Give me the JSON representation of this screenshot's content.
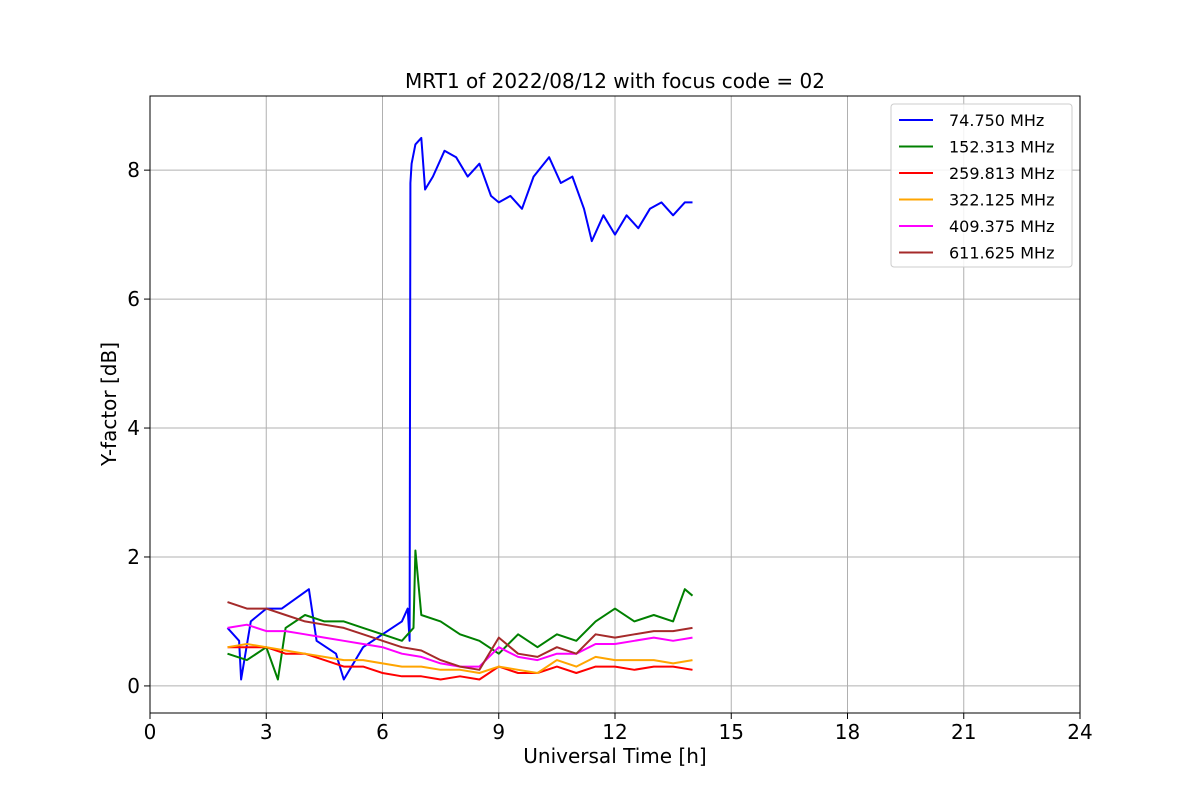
{
  "chart_data": {
    "type": "line",
    "title": "MRT1 of 2022/08/12 with focus code = 02",
    "xlabel": "Universal Time [h]",
    "ylabel": "Y-factor [dB]",
    "xlim": [
      0,
      24
    ],
    "ylim": [
      -0.42,
      9.15
    ],
    "xticks": [
      0,
      3,
      6,
      9,
      12,
      15,
      18,
      21,
      24
    ],
    "yticks": [
      0,
      2,
      4,
      6,
      8
    ],
    "grid": true,
    "legend_position": "top-right",
    "series": [
      {
        "name": " 74.750 MHz",
        "color": "#0000ff",
        "x": [
          2.0,
          2.3,
          2.35,
          2.6,
          3.0,
          3.4,
          4.1,
          4.3,
          4.8,
          5.0,
          5.5,
          6.0,
          6.5,
          6.65,
          6.7,
          6.72,
          6.75,
          6.85,
          7.0,
          7.1,
          7.3,
          7.6,
          7.9,
          8.2,
          8.5,
          8.8,
          9.0,
          9.3,
          9.6,
          9.9,
          10.3,
          10.6,
          10.9,
          11.2,
          11.4,
          11.7,
          12.0,
          12.3,
          12.6,
          12.9,
          13.2,
          13.5,
          13.8,
          14.0
        ],
        "values": [
          0.9,
          0.7,
          0.1,
          1.0,
          1.2,
          1.2,
          1.5,
          0.7,
          0.5,
          0.1,
          0.6,
          0.8,
          1.0,
          1.2,
          0.7,
          7.8,
          8.1,
          8.4,
          8.5,
          7.7,
          7.9,
          8.3,
          8.2,
          7.9,
          8.1,
          7.6,
          7.5,
          7.6,
          7.4,
          7.9,
          8.2,
          7.8,
          7.9,
          7.4,
          6.9,
          7.3,
          7.0,
          7.3,
          7.1,
          7.4,
          7.5,
          7.3,
          7.5,
          7.5
        ]
      },
      {
        "name": "152.313 MHz",
        "color": "#008000",
        "x": [
          2.0,
          2.5,
          3.0,
          3.3,
          3.5,
          4.0,
          4.5,
          5.0,
          5.5,
          6.0,
          6.5,
          6.8,
          6.85,
          7.0,
          7.5,
          8.0,
          8.5,
          9.0,
          9.5,
          10.0,
          10.5,
          11.0,
          11.5,
          12.0,
          12.5,
          13.0,
          13.5,
          13.8,
          14.0
        ],
        "values": [
          0.5,
          0.4,
          0.6,
          0.1,
          0.9,
          1.1,
          1.0,
          1.0,
          0.9,
          0.8,
          0.7,
          0.9,
          2.1,
          1.1,
          1.0,
          0.8,
          0.7,
          0.5,
          0.8,
          0.6,
          0.8,
          0.7,
          1.0,
          1.2,
          1.0,
          1.1,
          1.0,
          1.5,
          1.4
        ]
      },
      {
        "name": "259.813 MHz",
        "color": "#ff0000",
        "x": [
          2.0,
          2.5,
          3.0,
          3.5,
          4.0,
          4.5,
          5.0,
          5.5,
          6.0,
          6.5,
          7.0,
          7.5,
          8.0,
          8.5,
          9.0,
          9.5,
          10.0,
          10.5,
          11.0,
          11.5,
          12.0,
          12.5,
          13.0,
          13.5,
          14.0
        ],
        "values": [
          0.6,
          0.6,
          0.6,
          0.5,
          0.5,
          0.4,
          0.3,
          0.3,
          0.2,
          0.15,
          0.15,
          0.1,
          0.15,
          0.1,
          0.3,
          0.2,
          0.2,
          0.3,
          0.2,
          0.3,
          0.3,
          0.25,
          0.3,
          0.3,
          0.25
        ]
      },
      {
        "name": "322.125 MHz",
        "color": "#ffa500",
        "x": [
          2.0,
          2.5,
          3.0,
          3.5,
          4.0,
          4.5,
          5.0,
          5.5,
          6.0,
          6.5,
          7.0,
          7.5,
          8.0,
          8.5,
          9.0,
          9.5,
          10.0,
          10.5,
          11.0,
          11.5,
          12.0,
          12.5,
          13.0,
          13.5,
          14.0
        ],
        "values": [
          0.6,
          0.65,
          0.6,
          0.55,
          0.5,
          0.45,
          0.4,
          0.4,
          0.35,
          0.3,
          0.3,
          0.25,
          0.25,
          0.2,
          0.3,
          0.25,
          0.2,
          0.4,
          0.3,
          0.45,
          0.4,
          0.4,
          0.4,
          0.35,
          0.4
        ]
      },
      {
        "name": "409.375 MHz",
        "color": "#ff00ff",
        "x": [
          2.0,
          2.5,
          3.0,
          3.5,
          4.0,
          4.5,
          5.0,
          5.5,
          6.0,
          6.5,
          7.0,
          7.5,
          8.0,
          8.5,
          9.0,
          9.5,
          10.0,
          10.5,
          11.0,
          11.5,
          12.0,
          12.5,
          13.0,
          13.5,
          14.0
        ],
        "values": [
          0.9,
          0.95,
          0.85,
          0.85,
          0.8,
          0.75,
          0.7,
          0.65,
          0.6,
          0.5,
          0.45,
          0.35,
          0.3,
          0.3,
          0.6,
          0.45,
          0.4,
          0.5,
          0.5,
          0.65,
          0.65,
          0.7,
          0.75,
          0.7,
          0.75
        ]
      },
      {
        "name": "611.625 MHz",
        "color": "#a52a2a",
        "x": [
          2.0,
          2.5,
          3.0,
          3.5,
          4.0,
          4.5,
          5.0,
          5.5,
          6.0,
          6.5,
          7.0,
          7.5,
          8.0,
          8.5,
          9.0,
          9.5,
          10.0,
          10.5,
          11.0,
          11.5,
          12.0,
          12.5,
          13.0,
          13.5,
          14.0
        ],
        "values": [
          1.3,
          1.2,
          1.2,
          1.1,
          1.0,
          0.95,
          0.9,
          0.8,
          0.7,
          0.6,
          0.55,
          0.4,
          0.3,
          0.25,
          0.75,
          0.5,
          0.45,
          0.6,
          0.5,
          0.8,
          0.75,
          0.8,
          0.85,
          0.85,
          0.9
        ]
      }
    ]
  }
}
